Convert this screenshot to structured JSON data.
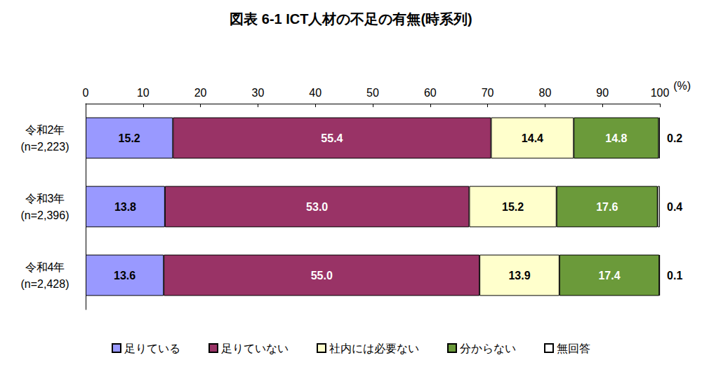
{
  "chart_data": {
    "type": "bar",
    "title": "図表 6-1 ICT人材の不足の有無(時系列)",
    "orientation": "horizontal",
    "stacked": true,
    "data_labels": true,
    "grid": false,
    "legend": "bottom",
    "x_label": "(%)",
    "categories": [
      "令和2年\n(n=2,223)",
      "令和3年\n(n=2,396)",
      "令和4年\n(n=2,428)"
    ],
    "xlim": [
      0,
      100
    ],
    "xticks": [
      0,
      10,
      20,
      30,
      40,
      50,
      60,
      70,
      80,
      90,
      100
    ],
    "series": [
      {
        "name": "足りている",
        "color": "#9999ff",
        "values": [
          15.2,
          13.8,
          13.6
        ],
        "value_labels": [
          "15.2",
          "13.8",
          "13.6"
        ]
      },
      {
        "name": "足りていない",
        "color": "#993366",
        "values": [
          55.4,
          53.0,
          55.0
        ],
        "value_labels": [
          "55.4",
          "53.0",
          "55.0"
        ]
      },
      {
        "name": "社内には必要ない",
        "color": "#ffffcc",
        "values": [
          14.4,
          15.2,
          13.9
        ],
        "value_labels": [
          "14.4",
          "15.2",
          "13.9"
        ]
      },
      {
        "name": "分からない",
        "color": "#6b9a3a",
        "values": [
          14.8,
          17.6,
          17.4
        ],
        "value_labels": [
          "14.8",
          "17.6",
          "17.4"
        ]
      },
      {
        "name": "無回答",
        "color": "#ffffff",
        "values": [
          0.2,
          0.4,
          0.1
        ],
        "value_labels": [
          "0.2",
          "0.4",
          "0.1"
        ]
      }
    ]
  }
}
